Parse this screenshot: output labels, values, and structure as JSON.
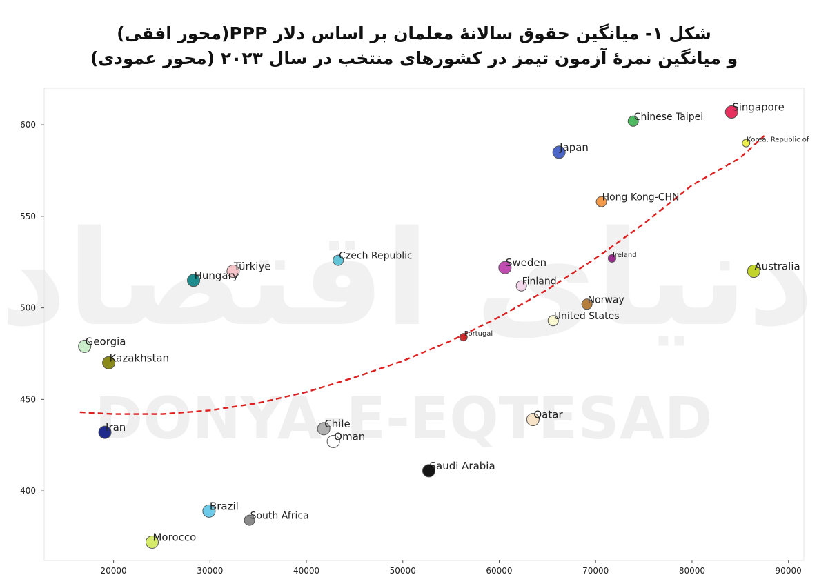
{
  "title_line1": "شکل ۱- میانگین حقوق سالانهٔ معلمان بر اساس دلار PPP(محور افقی)",
  "title_line2": "و میانگین نمرهٔ آزمون تیمز در کشورهای منتخب در سال ۲۰۲۳ (محور عمودی)",
  "watermark_latin": "DONYA-E-EQTESAD",
  "watermark_persian": "دنیای اقتصاد",
  "chart_data": {
    "type": "scatter",
    "title": "شکل ۱- میانگین حقوق سالانهٔ معلمان بر اساس دلار PPP(محور افقی) و میانگین نمرهٔ آزمون تیمز در کشورهای منتخب در سال ۲۰۲۳ (محور عمودی)",
    "xlim": [
      12800,
      91600
    ],
    "ylim": [
      362,
      620
    ],
    "xticks": [
      20000,
      30000,
      40000,
      50000,
      60000,
      70000,
      80000,
      90000
    ],
    "yticks": [
      400,
      450,
      500,
      550,
      600
    ],
    "grid": false,
    "points": [
      {
        "label": "Singapore",
        "x": 84100,
        "y": 607,
        "color": "#e8305f",
        "size": "large"
      },
      {
        "label": "Chinese Taipei",
        "x": 73900,
        "y": 602,
        "color": "#4fb860",
        "size": "medium"
      },
      {
        "label": "Japan",
        "x": 66200,
        "y": 585,
        "color": "#4a66c8",
        "size": "large"
      },
      {
        "label": "Korea, Republic of",
        "x": 85600,
        "y": 590,
        "color": "#eef04a",
        "size": "small"
      },
      {
        "label": "Hong Kong-CHN",
        "x": 70600,
        "y": 558,
        "color": "#f39a4b",
        "size": "medium"
      },
      {
        "label": "Czech Republic",
        "x": 43300,
        "y": 526,
        "color": "#62c5d8",
        "size": "medium"
      },
      {
        "label": "Türkiye",
        "x": 32400,
        "y": 520,
        "color": "#f7c4c9",
        "size": "large"
      },
      {
        "label": "Hungary",
        "x": 28300,
        "y": 515,
        "color": "#1e8c8c",
        "size": "large"
      },
      {
        "label": "Sweden",
        "x": 60600,
        "y": 522,
        "color": "#c04cb2",
        "size": "large"
      },
      {
        "label": "Ireland",
        "x": 71700,
        "y": 527,
        "color": "#9a2c8e",
        "size": "small"
      },
      {
        "label": "Australia",
        "x": 86400,
        "y": 520,
        "color": "#c2d42c",
        "size": "large"
      },
      {
        "label": "Finland",
        "x": 62300,
        "y": 512,
        "color": "#f2d6ea",
        "size": "medium"
      },
      {
        "label": "Norway",
        "x": 69100,
        "y": 502,
        "color": "#b57e3c",
        "size": "medium"
      },
      {
        "label": "United States",
        "x": 65600,
        "y": 493,
        "color": "#f8f6d0",
        "size": "medium"
      },
      {
        "label": "Portugal",
        "x": 56300,
        "y": 484,
        "color": "#cc2a2a",
        "size": "small"
      },
      {
        "label": "Georgia",
        "x": 17000,
        "y": 479,
        "color": "#c9ecc9",
        "size": "large"
      },
      {
        "label": "Kazakhstan",
        "x": 19500,
        "y": 470,
        "color": "#8a8a1a",
        "size": "large"
      },
      {
        "label": "Iran",
        "x": 19100,
        "y": 432,
        "color": "#1e2a8c",
        "size": "large"
      },
      {
        "label": "Chile",
        "x": 41800,
        "y": 434,
        "color": "#b0b0b0",
        "size": "large"
      },
      {
        "label": "Oman",
        "x": 42800,
        "y": 427,
        "color": "#ffffff",
        "size": "large"
      },
      {
        "label": "Qatar",
        "x": 63500,
        "y": 439,
        "color": "#f6e2c6",
        "size": "large"
      },
      {
        "label": "Saudi Arabia",
        "x": 52700,
        "y": 411,
        "color": "#151515",
        "size": "large"
      },
      {
        "label": "Brazil",
        "x": 29900,
        "y": 389,
        "color": "#6fcbea",
        "size": "large"
      },
      {
        "label": "South Africa",
        "x": 34100,
        "y": 384,
        "color": "#8a8a8a",
        "size": "medium"
      },
      {
        "label": "Morocco",
        "x": 24000,
        "y": 372,
        "color": "#d6ea6a",
        "size": "large"
      }
    ],
    "trendline": {
      "style": "dashed",
      "color": "#dd1f1f",
      "x": [
        16500,
        20000,
        25000,
        30000,
        35000,
        40000,
        45000,
        50000,
        55000,
        60000,
        65000,
        70000,
        75000,
        80000,
        85000,
        87500
      ],
      "y": [
        443,
        442,
        442,
        444,
        448,
        454,
        462,
        471,
        482,
        495,
        510,
        527,
        546,
        567,
        582,
        594
      ]
    }
  }
}
